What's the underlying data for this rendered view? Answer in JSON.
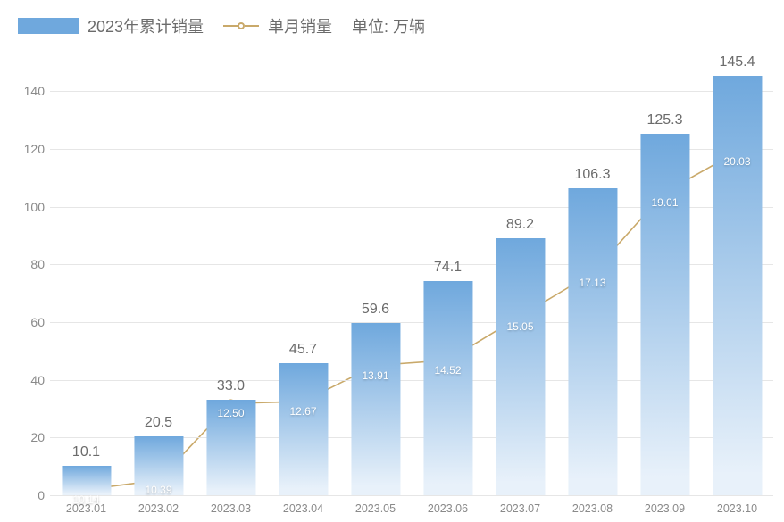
{
  "unit_label": "单位: 万辆",
  "legend": {
    "bar_label": "2023年累计销量",
    "line_label": "单月销量"
  },
  "chart": {
    "type": "bar+line",
    "background_color": "#ffffff",
    "grid_color": "#e6e6e6",
    "axis_text_color": "#8a8a8a",
    "bar_label_color": "#6b6b6b",
    "bar_gradient_top": "#6fa8dd",
    "bar_gradient_bottom": "#e8f1fa",
    "line_color": "#c9a96a",
    "point_fill": "#ffffff",
    "point_label_color": "#ffffff",
    "ylim": [
      0,
      150
    ],
    "ytick_step": 20,
    "yticks": [
      0,
      20,
      40,
      60,
      80,
      100,
      120,
      140
    ],
    "bar_width_ratio": 0.68,
    "categories": [
      "2023.01",
      "2023.02",
      "2023.03",
      "2023.04",
      "2023.05",
      "2023.06",
      "2023.07",
      "2023.08",
      "2023.09",
      "2023.10"
    ],
    "bar_values": [
      10.1,
      20.5,
      33.0,
      45.7,
      59.6,
      74.1,
      89.2,
      106.3,
      125.3,
      145.4
    ],
    "bar_value_labels": [
      "10.1",
      "20.5",
      "33.0",
      "45.7",
      "59.6",
      "74.1",
      "89.2",
      "106.3",
      "125.3",
      "145.4"
    ],
    "line_values": [
      2.0,
      5.2,
      31.8,
      32.5,
      45.0,
      46.8,
      62.0,
      77.0,
      105.0,
      119.0
    ],
    "line_labels": [
      "10.14",
      "10.39",
      "12.50",
      "12.67",
      "13.91",
      "14.52",
      "15.05",
      "17.13",
      "19.01",
      "20.03"
    ],
    "label_fontsize": 14,
    "bar_label_fontsize": 16,
    "point_label_fontsize": 12,
    "line_width": 1.6,
    "point_radius": 4,
    "point_stroke_width": 1.6
  }
}
